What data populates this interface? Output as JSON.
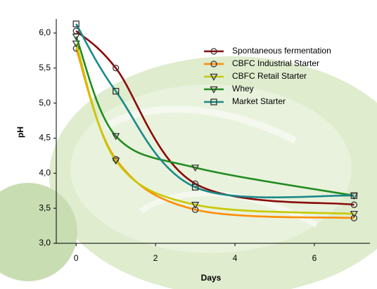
{
  "chart_data": {
    "type": "line",
    "xlabel": "Days",
    "ylabel": "pH",
    "x": [
      0,
      1,
      3,
      7
    ],
    "series": [
      {
        "name": "Spontaneous fermentation",
        "color": "#8b0a0a",
        "marker": "circle",
        "values": [
          6.03,
          5.5,
          3.85,
          3.55
        ]
      },
      {
        "name": "CBFC Industrial Starter",
        "color": "#ff8c00",
        "marker": "circle",
        "values": [
          5.78,
          4.2,
          3.48,
          3.36
        ]
      },
      {
        "name": "CBFC Retail Starter",
        "color": "#c8c800",
        "marker": "triangle-down",
        "values": [
          5.85,
          4.18,
          3.55,
          3.42
        ]
      },
      {
        "name": "Whey",
        "color": "#228b22",
        "marker": "triangle-down",
        "values": [
          5.95,
          4.53,
          4.08,
          3.68
        ]
      },
      {
        "name": "Market Starter",
        "color": "#1a8a8a",
        "marker": "square",
        "values": [
          6.13,
          5.17,
          3.8,
          3.68
        ]
      }
    ],
    "xlim": [
      -0.5,
      7.4
    ],
    "xticks": [
      0,
      2,
      4,
      6
    ],
    "ylim": [
      3.0,
      6.2
    ],
    "yticks": [
      {
        "value": 3.0,
        "label": "3,0"
      },
      {
        "value": 3.5,
        "label": "3,5"
      },
      {
        "value": 4.0,
        "label": "4,0"
      },
      {
        "value": 4.5,
        "label": "4,5"
      },
      {
        "value": 5.0,
        "label": "5,0"
      },
      {
        "value": 5.5,
        "label": "5,5"
      },
      {
        "value": 6.0,
        "label": "6,0"
      }
    ],
    "legend": "upper right"
  }
}
